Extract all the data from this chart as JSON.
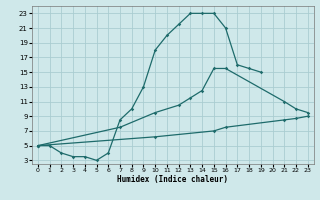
{
  "xlabel": "Humidex (Indice chaleur)",
  "xlim": [
    -0.5,
    23.5
  ],
  "ylim": [
    2.5,
    24
  ],
  "xticks": [
    0,
    1,
    2,
    3,
    4,
    5,
    6,
    7,
    8,
    9,
    10,
    11,
    12,
    13,
    14,
    15,
    16,
    17,
    18,
    19,
    20,
    21,
    22,
    23
  ],
  "yticks": [
    3,
    5,
    7,
    9,
    11,
    13,
    15,
    17,
    19,
    21,
    23
  ],
  "bg_color": "#cfe8ea",
  "grid_color": "#aacdd1",
  "line_color": "#1e6b6b",
  "line1_x": [
    0,
    1,
    2,
    3,
    4,
    5,
    6,
    7,
    8,
    9,
    10,
    11,
    12,
    13,
    14,
    15,
    16,
    17,
    18,
    19
  ],
  "line1_y": [
    5,
    5,
    4,
    3.5,
    3.5,
    3,
    4,
    8.5,
    10,
    13,
    18,
    20,
    21.5,
    23,
    23,
    23,
    21,
    16,
    15.5,
    15
  ],
  "line2_x": [
    0,
    7,
    10,
    12,
    13,
    14,
    15,
    16,
    21,
    22,
    23
  ],
  "line2_y": [
    5,
    7.5,
    9.5,
    10.5,
    11.5,
    12.5,
    15.5,
    15.5,
    11,
    10,
    9.5
  ],
  "line3_x": [
    0,
    10,
    15,
    16,
    21,
    22,
    23
  ],
  "line3_y": [
    5,
    6.2,
    7,
    7.5,
    8.5,
    8.7,
    9
  ]
}
